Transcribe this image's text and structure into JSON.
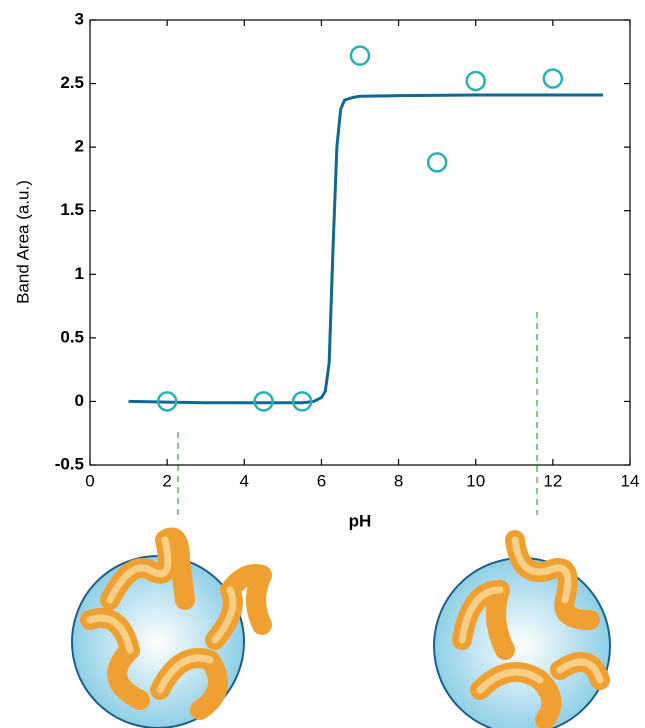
{
  "chart_data": {
    "type": "scatter",
    "xlabel": "pH",
    "ylabel": "Band Area (a.u.)",
    "xlim": [
      0,
      14
    ],
    "xticks": [
      0,
      2,
      4,
      6,
      8,
      10,
      12,
      14
    ],
    "ylim": [
      -0.5,
      3
    ],
    "yticks": [
      -0.5,
      0,
      0.5,
      1,
      1.5,
      2,
      2.5,
      3
    ],
    "scatter": {
      "color": "#2ab0b0",
      "x": [
        2,
        4.5,
        5.5,
        7,
        9,
        10,
        12
      ],
      "values": [
        0,
        0,
        0,
        2.72,
        1.88,
        2.52,
        2.54
      ]
    },
    "fit": {
      "color": "#116891",
      "x": [
        1,
        2,
        3,
        4,
        5,
        5.5,
        5.8,
        6,
        6.1,
        6.2,
        6.3,
        6.4,
        6.5,
        6.6,
        6.8,
        7,
        8,
        10,
        13.3
      ],
      "values": [
        0,
        -0.005,
        -0.01,
        -0.01,
        -0.01,
        -0.01,
        0,
        0.03,
        0.08,
        0.3,
        1.2,
        2.0,
        2.3,
        2.37,
        2.39,
        2.4,
        2.405,
        2.41,
        2.41
      ]
    }
  }
}
